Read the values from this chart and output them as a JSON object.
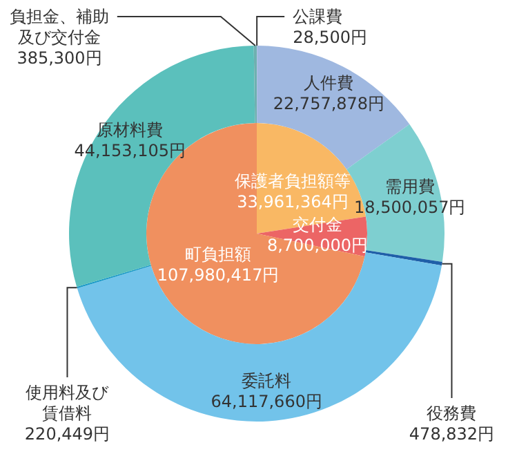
{
  "chart_data": [
    {
      "type": "pie",
      "categories": [
        "保護者負担額等",
        "交付金",
        "町負担額"
      ],
      "values": [
        33961364,
        8700000,
        107980417
      ],
      "value_labels": [
        "33,961,364円",
        "8,700,000円",
        "107,980,417円"
      ],
      "colors": [
        "#f9b864",
        "#ec6565",
        "#f0905f"
      ]
    },
    {
      "type": "donut",
      "categories": [
        "公課費",
        "人件費",
        "需用費",
        "役務費",
        "委託料",
        "使用料及び賃借料",
        "原材料費",
        "負担金、補助及び交付金"
      ],
      "values": [
        28500,
        22757878,
        18500057,
        478832,
        64117660,
        220449,
        44153105,
        385300
      ],
      "value_labels": [
        "28,500円",
        "22,757,878円",
        "18,500,057円",
        "478,832円",
        "64,117,660円",
        "220,449円",
        "44,153,105円",
        "385,300円"
      ],
      "colors": [
        "#8fa9d6",
        "#9fb8e0",
        "#7ecfd0",
        "#1f5fa8",
        "#72c3ea",
        "#1a9ac8",
        "#5bc0bc",
        "#6fb0b0"
      ]
    }
  ]
}
